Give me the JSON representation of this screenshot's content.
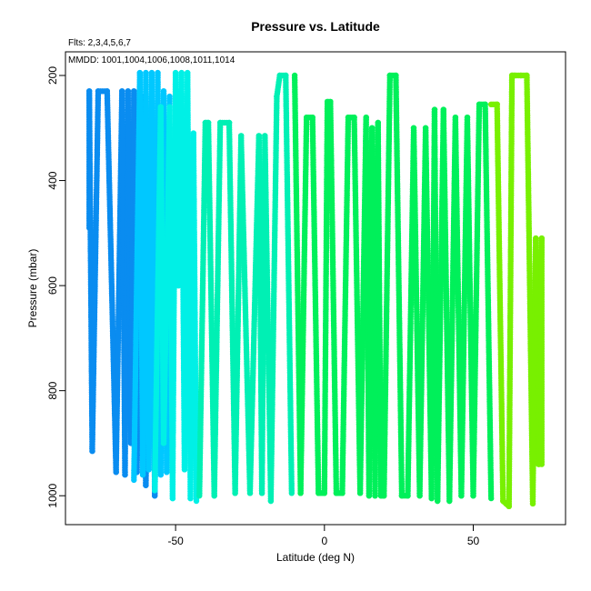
{
  "chart_data": {
    "type": "scatter",
    "title": "Pressure vs. Latitude",
    "subtitle_flights": "Flts: 2,3,4,5,6,7",
    "subtitle_dates": "MMDD: 1001,1004,1006,1008,1011,1014",
    "xlabel": "Latitude (deg N)",
    "ylabel": "Pressure (mbar)",
    "xlim": [
      -87,
      81
    ],
    "ylim": [
      1055,
      155
    ],
    "y_inverted": true,
    "xticks": [
      -50,
      0,
      50
    ],
    "yticks": [
      200,
      400,
      600,
      800,
      1000
    ],
    "series": [
      {
        "name": "1001",
        "color": "#0a8cf0",
        "profile_latitudes": [
          -79,
          -79,
          -78,
          -76,
          -73,
          -70,
          -68,
          -67,
          -66,
          -65,
          -64,
          -63,
          -61,
          -60,
          -58,
          -57,
          -55
        ],
        "profile_pressures": [
          490,
          230,
          915,
          230,
          230,
          955,
          230,
          960,
          230,
          900,
          230,
          955,
          240,
          980,
          250,
          1000,
          300
        ]
      },
      {
        "name": "1004",
        "color": "#00c8ff",
        "profile_latitudes": [
          -64,
          -62,
          -61,
          -60,
          -59,
          -58,
          -57,
          -56,
          -55,
          -54,
          -53,
          -52
        ],
        "profile_pressures": [
          970,
          195,
          960,
          195,
          950,
          195,
          980,
          195,
          960,
          230,
          955,
          240
        ]
      },
      {
        "name": "1006",
        "color": "#00f0e6",
        "profile_latitudes": [
          -57,
          -55,
          -54,
          -52,
          -51,
          -50,
          -49,
          -48,
          -47,
          -46,
          -45,
          -44,
          -43
        ],
        "profile_pressures": [
          990,
          260,
          900,
          260,
          1005,
          195,
          600,
          195,
          950,
          195,
          1005,
          310,
          1010
        ]
      },
      {
        "name": "1008",
        "color": "#00f0b4",
        "profile_latitudes": [
          -42,
          -40,
          -39,
          -37,
          -35,
          -32,
          -30,
          -28,
          -25,
          -22,
          -21,
          -20,
          -18,
          -16,
          -15,
          -13,
          -11
        ],
        "profile_pressures": [
          1000,
          290,
          290,
          1000,
          290,
          290,
          995,
          315,
          995,
          315,
          995,
          315,
          1010,
          240,
          200,
          200,
          995
        ]
      },
      {
        "name": "1011",
        "color": "#00f05a",
        "profile_latitudes": [
          -10,
          -8,
          -6,
          -4,
          -2,
          0,
          1,
          2,
          4,
          6,
          8,
          10,
          12,
          14,
          15,
          16,
          17,
          18,
          19,
          20,
          22,
          24,
          26,
          28,
          30,
          32,
          34,
          36,
          37,
          38,
          40,
          42,
          44,
          46,
          48,
          50,
          52,
          54,
          56
        ],
        "profile_pressures": [
          200,
          995,
          280,
          280,
          995,
          995,
          250,
          250,
          995,
          995,
          280,
          280,
          995,
          280,
          1000,
          300,
          1000,
          290,
          1000,
          1000,
          200,
          200,
          1000,
          1000,
          300,
          1000,
          300,
          1005,
          265,
          1010,
          265,
          1010,
          280,
          1000,
          280,
          1000,
          255,
          255,
          1005
        ]
      },
      {
        "name": "1014",
        "color": "#78f000",
        "profile_latitudes": [
          56,
          58,
          60,
          61,
          62,
          63,
          64,
          66,
          68,
          70,
          71,
          72,
          73,
          73
        ],
        "profile_pressures": [
          255,
          255,
          1010,
          1015,
          1020,
          200,
          200,
          200,
          200,
          1015,
          510,
          940,
          510,
          940
        ]
      }
    ]
  }
}
